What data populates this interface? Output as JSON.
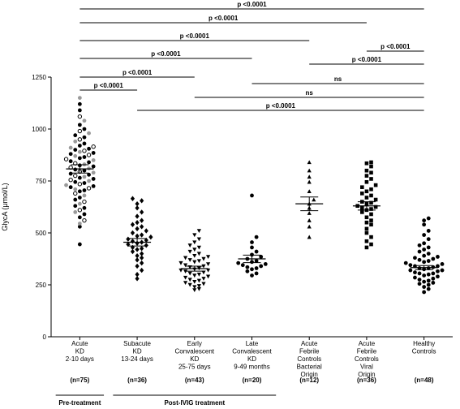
{
  "chart_data": {
    "type": "scatter",
    "title": "",
    "xlabel": "",
    "ylabel": "GlycA (μmol/L)",
    "ylim": [
      0,
      1250
    ],
    "yticks": [
      0,
      250,
      500,
      750,
      1000,
      1250
    ],
    "groups": [
      {
        "label_lines": [
          "Acute",
          "KD",
          "2-10 days"
        ],
        "n": "(n=75)",
        "mean": 808,
        "sem": 20,
        "marker": "mixed",
        "values": [
          445,
          530,
          545,
          560,
          575,
          590,
          600,
          610,
          620,
          630,
          640,
          650,
          660,
          670,
          680,
          690,
          700,
          705,
          710,
          715,
          720,
          725,
          730,
          735,
          740,
          745,
          750,
          755,
          760,
          765,
          770,
          775,
          780,
          785,
          790,
          795,
          800,
          805,
          810,
          815,
          820,
          825,
          830,
          835,
          840,
          845,
          850,
          855,
          860,
          865,
          870,
          875,
          880,
          885,
          890,
          895,
          900,
          905,
          910,
          915,
          920,
          930,
          940,
          950,
          960,
          970,
          980,
          990,
          1000,
          1020,
          1040,
          1060,
          1090,
          1120,
          1150
        ]
      },
      {
        "label_lines": [
          "Subacute",
          "KD",
          "13-24 days"
        ],
        "n": "(n=36)",
        "mean": 455,
        "sem": 18,
        "marker": "diamond",
        "values": [
          280,
          300,
          320,
          340,
          355,
          370,
          380,
          390,
          400,
          410,
          420,
          425,
          430,
          440,
          445,
          450,
          455,
          460,
          465,
          470,
          480,
          485,
          490,
          500,
          510,
          520,
          530,
          540,
          550,
          560,
          580,
          600,
          620,
          640,
          655,
          665
        ]
      },
      {
        "label_lines": [
          "Early",
          "Convalescent",
          "KD",
          "25-75 days"
        ],
        "n": "(n=43)",
        "mean": 328,
        "sem": 12,
        "marker": "triangle-down",
        "values": [
          225,
          230,
          240,
          245,
          250,
          255,
          260,
          265,
          270,
          275,
          280,
          285,
          290,
          295,
          300,
          305,
          310,
          315,
          320,
          320,
          325,
          330,
          335,
          340,
          345,
          350,
          355,
          360,
          365,
          370,
          375,
          380,
          385,
          390,
          400,
          410,
          420,
          430,
          440,
          455,
          470,
          490,
          510
        ]
      },
      {
        "label_lines": [
          "Late",
          "Convalescent",
          "KD",
          "9-49 months"
        ],
        "n": "(n=20)",
        "mean": 375,
        "sem": 18,
        "marker": "circle",
        "values": [
          295,
          305,
          315,
          325,
          330,
          335,
          340,
          345,
          350,
          355,
          360,
          365,
          375,
          385,
          395,
          410,
          430,
          455,
          480,
          680
        ]
      },
      {
        "label_lines": [
          "Acute",
          "Febrile",
          "Controls",
          "Bacterial",
          "Origin"
        ],
        "n": "(n=12)",
        "mean": 640,
        "sem": 33,
        "marker": "triangle-up",
        "values": [
          480,
          530,
          560,
          595,
          620,
          640,
          660,
          700,
          745,
          770,
          800,
          840
        ]
      },
      {
        "label_lines": [
          "Acute",
          "Febrile",
          "Controls",
          "Viral",
          "Origin"
        ],
        "n": "(n=36)",
        "mean": 630,
        "sem": 20,
        "marker": "square",
        "values": [
          430,
          445,
          460,
          480,
          500,
          520,
          540,
          550,
          560,
          575,
          590,
          600,
          610,
          615,
          620,
          625,
          630,
          640,
          645,
          650,
          660,
          670,
          680,
          690,
          700,
          710,
          720,
          730,
          745,
          760,
          775,
          790,
          800,
          820,
          835,
          840
        ]
      },
      {
        "label_lines": [
          "Healthy",
          "Controls"
        ],
        "n": "(n=48)",
        "mean": 333,
        "sem": 10,
        "marker": "circle",
        "values": [
          215,
          230,
          240,
          250,
          255,
          260,
          265,
          270,
          275,
          280,
          285,
          290,
          295,
          300,
          305,
          305,
          310,
          315,
          320,
          320,
          325,
          330,
          330,
          335,
          340,
          340,
          345,
          350,
          355,
          360,
          365,
          370,
          375,
          380,
          385,
          390,
          400,
          410,
          420,
          430,
          440,
          450,
          470,
          490,
          510,
          540,
          560,
          570
        ]
      }
    ],
    "comparisons": [
      {
        "from": 0,
        "to": 6,
        "label": "p <0.0001"
      },
      {
        "from": 0,
        "to": 5,
        "label": "p <0.0001"
      },
      {
        "from": 0,
        "to": 4,
        "label": "p <0.0001"
      },
      {
        "from": 0,
        "to": 3,
        "label": "p <0.0001"
      },
      {
        "from": 0,
        "to": 2,
        "label": "p <0.0001"
      },
      {
        "from": 0,
        "to": 1,
        "label": "p <0.0001"
      },
      {
        "from": 5,
        "to": 6,
        "label": "p <0.0001"
      },
      {
        "from": 4,
        "to": 6,
        "label": "p <0.0001"
      },
      {
        "from": 3,
        "to": 6,
        "label": "ns"
      },
      {
        "from": 2,
        "to": 6,
        "label": "ns"
      },
      {
        "from": 1,
        "to": 6,
        "label": "p <0.0001"
      }
    ],
    "group_brackets": [
      {
        "from": 0,
        "to": 0,
        "label": "Pre-treatment"
      },
      {
        "from": 1,
        "to": 3,
        "label": "Post-IVIG treatment"
      }
    ],
    "grid": false,
    "legend": "none"
  }
}
